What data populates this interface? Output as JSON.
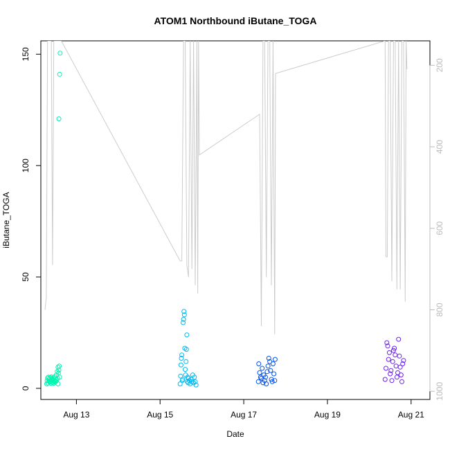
{
  "chart_data": {
    "type": "scatter",
    "title": "ATOM1 Northbound iButane_TOGA",
    "xlabel": "Date",
    "ylabel": "iButane_TOGA",
    "xlim": [
      12.15,
      21.45
    ],
    "ylim": [
      -5,
      156
    ],
    "y2lim": [
      1020,
      140
    ],
    "x_ticks": [
      13,
      15,
      17,
      19,
      21
    ],
    "x_tick_labels": [
      "Aug 13",
      "Aug 15",
      "Aug 17",
      "Aug 19",
      "Aug 21"
    ],
    "y_ticks": [
      0,
      50,
      100,
      150
    ],
    "y_tick_labels": [
      "0",
      "50",
      "100",
      "150"
    ],
    "y2_ticks": [
      200,
      400,
      600,
      800,
      1000
    ],
    "y2_tick_labels": [
      "200",
      "400",
      "600",
      "800",
      "1000"
    ],
    "grid": false,
    "legend": "none",
    "colors": {
      "axis": "#000000",
      "altitude_line": "#cccccc",
      "y2_axis": "#bbbbbb"
    },
    "series": [
      {
        "color": "#00f5b0",
        "points": [
          [
            12.29,
            2
          ],
          [
            12.3,
            3.5
          ],
          [
            12.31,
            4.6
          ],
          [
            12.32,
            2.4
          ],
          [
            12.33,
            5
          ],
          [
            12.34,
            3.2
          ],
          [
            12.35,
            4.1
          ],
          [
            12.36,
            2.8
          ],
          [
            12.37,
            4.8
          ],
          [
            12.38,
            3
          ],
          [
            12.39,
            2.2
          ],
          [
            12.4,
            5.1
          ],
          [
            12.41,
            3.6
          ],
          [
            12.42,
            4.4
          ],
          [
            12.43,
            2.6
          ],
          [
            12.44,
            3.9
          ],
          [
            12.45,
            4.7
          ],
          [
            12.46,
            2.3
          ],
          [
            12.47,
            3.4
          ],
          [
            12.48,
            5.2
          ],
          [
            12.49,
            2.9
          ],
          [
            12.5,
            4.2
          ],
          [
            12.51,
            3.1
          ],
          [
            12.52,
            6
          ],
          [
            12.53,
            3.8
          ],
          [
            12.54,
            7.5
          ],
          [
            12.55,
            4.5
          ],
          [
            12.56,
            9.5
          ],
          [
            12.56,
            2
          ],
          [
            12.57,
            6.8
          ],
          [
            12.58,
            8.2
          ],
          [
            12.59,
            10
          ],
          [
            12.6,
            5
          ],
          [
            12.58,
            121
          ],
          [
            12.6,
            141
          ],
          [
            12.61,
            150.5
          ]
        ]
      },
      {
        "color": "#00b8f0",
        "points": [
          [
            15.48,
            2
          ],
          [
            15.49,
            5.5
          ],
          [
            15.5,
            10.5
          ],
          [
            15.51,
            13.5
          ],
          [
            15.52,
            15
          ],
          [
            15.53,
            3.5
          ],
          [
            15.54,
            4
          ],
          [
            15.55,
            29.5
          ],
          [
            15.56,
            31
          ],
          [
            15.57,
            34.5
          ],
          [
            15.58,
            33
          ],
          [
            15.59,
            18
          ],
          [
            15.6,
            8.5
          ],
          [
            15.61,
            6
          ],
          [
            15.62,
            12
          ],
          [
            15.63,
            17.5
          ],
          [
            15.64,
            24
          ],
          [
            15.65,
            3
          ],
          [
            15.66,
            5
          ],
          [
            15.67,
            2.5
          ],
          [
            15.68,
            4.5
          ],
          [
            15.7,
            3.5
          ],
          [
            15.72,
            2
          ],
          [
            15.74,
            4
          ],
          [
            15.76,
            3
          ],
          [
            15.78,
            6
          ],
          [
            15.8,
            2.5
          ],
          [
            15.82,
            5
          ],
          [
            15.84,
            3
          ],
          [
            15.86,
            1.5
          ]
        ]
      },
      {
        "color": "#0050f0",
        "points": [
          [
            17.35,
            3
          ],
          [
            17.36,
            11
          ],
          [
            17.38,
            7
          ],
          [
            17.4,
            5
          ],
          [
            17.42,
            4.5
          ],
          [
            17.44,
            9
          ],
          [
            17.46,
            2.5
          ],
          [
            17.48,
            6
          ],
          [
            17.5,
            3.5
          ],
          [
            17.52,
            5
          ],
          [
            17.54,
            2
          ],
          [
            17.56,
            7.5
          ],
          [
            17.58,
            10
          ],
          [
            17.6,
            13.5
          ],
          [
            17.62,
            12
          ],
          [
            17.64,
            8
          ],
          [
            17.66,
            4
          ],
          [
            17.68,
            3
          ],
          [
            17.7,
            11
          ],
          [
            17.72,
            6.5
          ],
          [
            17.74,
            3.5
          ],
          [
            17.75,
            13
          ]
        ]
      },
      {
        "color": "#6a1ef0",
        "points": [
          [
            20.38,
            4
          ],
          [
            20.4,
            9
          ],
          [
            20.42,
            20.5
          ],
          [
            20.44,
            19
          ],
          [
            20.46,
            13
          ],
          [
            20.48,
            16
          ],
          [
            20.5,
            6.5
          ],
          [
            20.52,
            8
          ],
          [
            20.54,
            3.5
          ],
          [
            20.56,
            12
          ],
          [
            20.58,
            17
          ],
          [
            20.6,
            18
          ],
          [
            20.62,
            15
          ],
          [
            20.64,
            10
          ],
          [
            20.66,
            5
          ],
          [
            20.68,
            7
          ],
          [
            20.7,
            22
          ],
          [
            20.72,
            14.5
          ],
          [
            20.74,
            9.5
          ],
          [
            20.76,
            6
          ],
          [
            20.78,
            3
          ],
          [
            20.8,
            11
          ],
          [
            20.82,
            12.5
          ]
        ]
      }
    ],
    "altitude_line": {
      "color": "#cccccc",
      "x": [
        12.25,
        12.28,
        12.31,
        12.34,
        12.37,
        12.4,
        12.43,
        12.46,
        12.49,
        12.52,
        12.55,
        12.58,
        12.61,
        12.64,
        15.48,
        15.52,
        15.56,
        15.6,
        15.64,
        15.68,
        15.72,
        15.76,
        15.8,
        15.84,
        15.88,
        15.9,
        15.92,
        15.94,
        17.38,
        17.42,
        17.46,
        17.5,
        17.54,
        17.58,
        17.62,
        17.66,
        17.7,
        17.74,
        17.76,
        20.38,
        20.4,
        20.43,
        20.46,
        20.5,
        20.54,
        20.58,
        20.62,
        20.66,
        20.7,
        20.74,
        20.78,
        20.82,
        20.86,
        20.88,
        20.9
      ],
      "y": [
        800,
        770,
        140,
        140,
        140,
        140,
        690,
        140,
        140,
        140,
        140,
        140,
        140,
        140,
        680,
        680,
        140,
        140,
        690,
        720,
        140,
        700,
        140,
        740,
        140,
        760,
        140,
        420,
        320,
        840,
        140,
        140,
        720,
        140,
        140,
        740,
        140,
        860,
        220,
        140,
        670,
        670,
        140,
        140,
        730,
        140,
        140,
        750,
        140,
        750,
        140,
        140,
        780,
        140,
        210
      ]
    }
  }
}
